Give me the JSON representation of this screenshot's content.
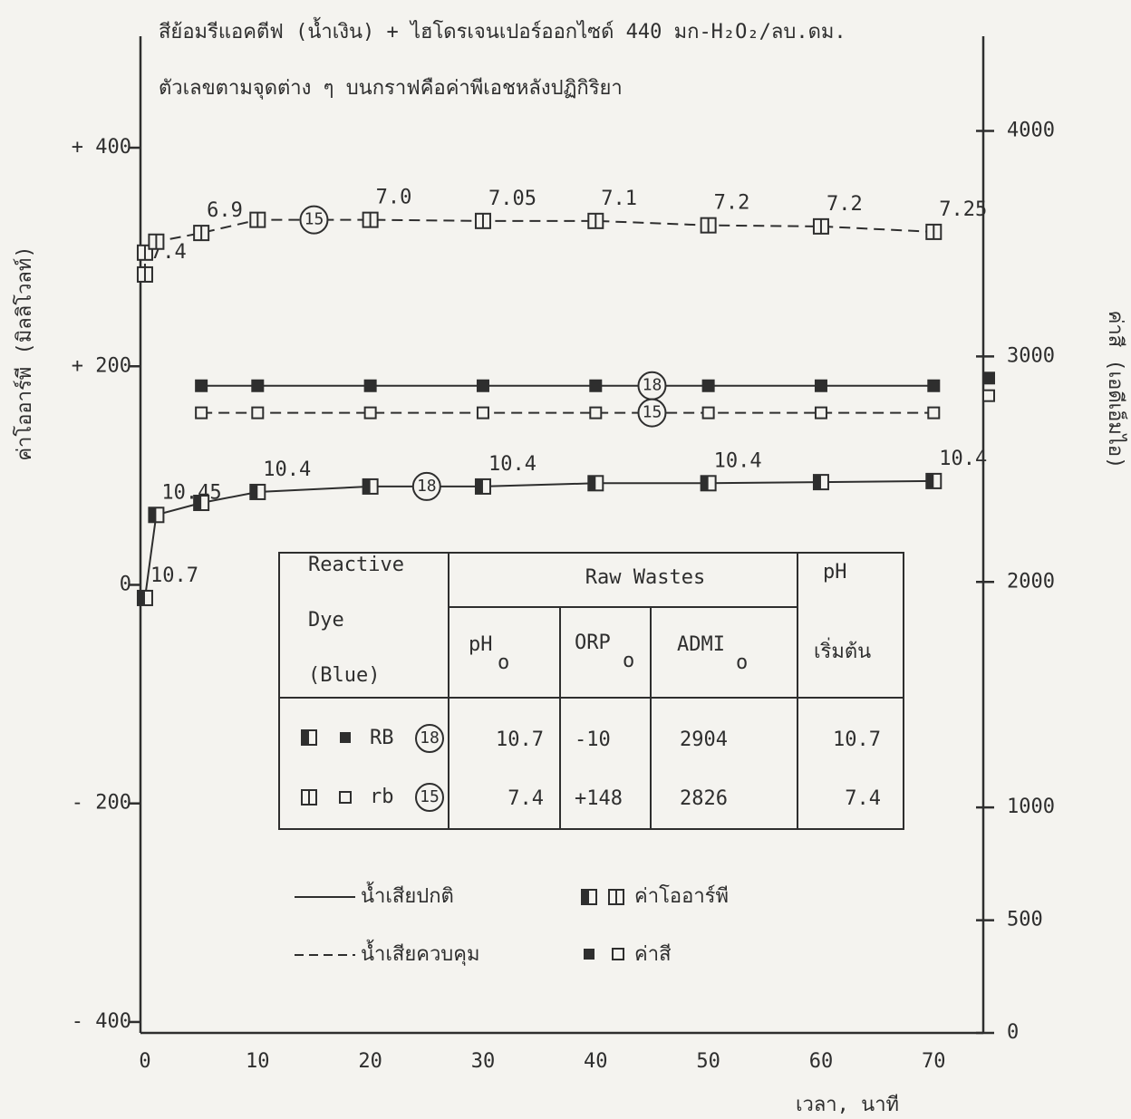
{
  "chart_data": {
    "type": "line",
    "title": "สีย้อมรีแอคตีฟ (น้ำเงิน) + ไฮโดรเจนเปอร์ออกไซด์ 440 มก-H₂O₂/ลบ.ดม.",
    "subtitle": "ตัวเลขตามจุดต่าง ๆ บนกราฟคือค่าพีเอชหลังปฏิกิริยา",
    "x_label": "เวลา, นาที",
    "y_label": "ค่าโออาร์พี (มิลลิโวลท์)",
    "y2_label": "ค่าสี (เอดีเอ็มไอ)",
    "xlim": [
      -0.4,
      74.4
    ],
    "xticks": [
      0,
      10,
      20,
      30,
      40,
      50,
      60,
      70
    ],
    "ylim": [
      -410,
      502
    ],
    "yticks": [
      {
        "value": 400,
        "label": "+ 400"
      },
      {
        "value": 200,
        "label": "+ 200"
      },
      0,
      {
        "value": -200,
        "label": "- 200"
      },
      {
        "value": -400,
        "label": "- 400"
      }
    ],
    "y2lim": [
      0,
      4420
    ],
    "y2ticks": [
      0,
      500,
      1000,
      2000,
      3000,
      4000
    ],
    "color": "#2e2e2e",
    "series": [
      {
        "tag": "18",
        "axis": "y",
        "dash": false,
        "marker": "half",
        "x": [
          0,
          1,
          5,
          10,
          20,
          30,
          40,
          50,
          60,
          70
        ],
        "values": [
          -12,
          64,
          75,
          85,
          90,
          90,
          93,
          93,
          94,
          95
        ],
        "point_labels": [
          "10.7",
          "10.45",
          null,
          "10.4",
          null,
          "10.4",
          null,
          "10.4",
          null,
          "10.4"
        ]
      },
      {
        "tag": "15",
        "axis": "y",
        "dash": true,
        "marker": "split",
        "x": [
          0,
          0,
          1,
          5,
          10,
          20,
          30,
          40,
          50,
          60,
          70
        ],
        "values": [
          284,
          304,
          314,
          322,
          334,
          334,
          333,
          333,
          329,
          328,
          323
        ],
        "point_labels": [
          "7.4",
          null,
          null,
          "6.9",
          null,
          "7.0",
          "7.05",
          "7.1",
          "7.2",
          "7.2",
          "7.25"
        ]
      },
      {
        "tag": "18",
        "axis": "y2",
        "dash": false,
        "marker": "filled",
        "x": [
          5,
          10,
          20,
          30,
          40,
          50,
          60,
          70
        ],
        "values": [
          2870,
          2870,
          2870,
          2870,
          2870,
          2870,
          2870,
          2870
        ]
      },
      {
        "tag": "15",
        "axis": "y2",
        "dash": true,
        "marker": "open",
        "x": [
          5,
          10,
          20,
          30,
          40,
          50,
          60,
          70
        ],
        "values": [
          2750,
          2750,
          2750,
          2750,
          2750,
          2750,
          2750,
          2750
        ]
      }
    ],
    "legend": {
      "lines": [
        "น้ำเสียปกติ",
        "น้ำเสียควบคุม"
      ],
      "markers": [
        "ค่าโออาร์พี",
        "ค่าสี"
      ]
    }
  },
  "table": {
    "header": {
      "dye": [
        "Reactive",
        "Dye",
        "(Blue)"
      ],
      "raw": "Raw Wastes",
      "sub": [
        "pH",
        "ORP",
        "ADMI"
      ],
      "subscript": "o",
      "ph": [
        "pH",
        "เริ่มต้น"
      ]
    },
    "rows": [
      {
        "name": "RB",
        "tag": "18",
        "ph": "10.7",
        "orp": "-10",
        "admi": 2904,
        "ph_start": "10.7"
      },
      {
        "name": "rb",
        "tag": "15",
        "ph": "7.4",
        "orp": "+148",
        "admi": 2826,
        "ph_start": "7.4"
      }
    ]
  }
}
